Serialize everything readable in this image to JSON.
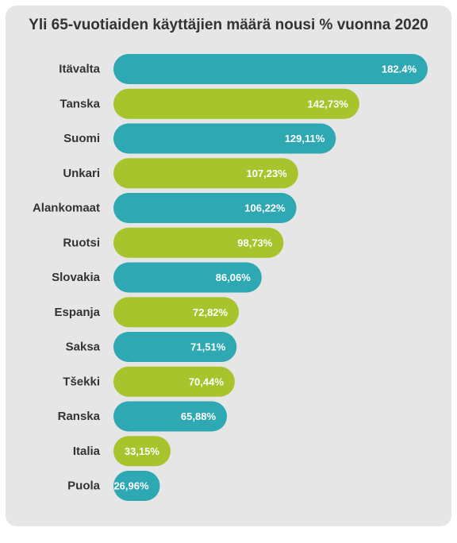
{
  "chart_data": {
    "type": "bar",
    "orientation": "horizontal",
    "title": "Yli 65-vuotiaiden käyttäjien määrä nousi % vuonna 2020",
    "categories": [
      "Itävalta",
      "Tanska",
      "Suomi",
      "Unkari",
      "Alankomaat",
      "Ruotsi",
      "Slovakia",
      "Espanja",
      "Saksa",
      "Tšekki",
      "Ranska",
      "Italia",
      "Puola"
    ],
    "values": [
      182.4,
      142.73,
      129.11,
      107.23,
      106.22,
      98.73,
      86.06,
      72.82,
      71.51,
      70.44,
      65.88,
      33.15,
      26.96
    ],
    "value_labels": [
      "182.4%",
      "142,73%",
      "129,11%",
      "107,23%",
      "106,22%",
      "98,73%",
      "86,06%",
      "72,82%",
      "71,51%",
      "70,44%",
      "65,88%",
      "33,15%",
      "26,96%"
    ],
    "colors": [
      "#2ea8b3",
      "#a8c42c"
    ],
    "color_pattern": "alternating",
    "xlim": [
      0,
      182.4
    ],
    "grid": false,
    "legend": "none"
  },
  "colors": {
    "background": "#e6e6e6",
    "text": "#333333",
    "label": "#ffffff"
  }
}
